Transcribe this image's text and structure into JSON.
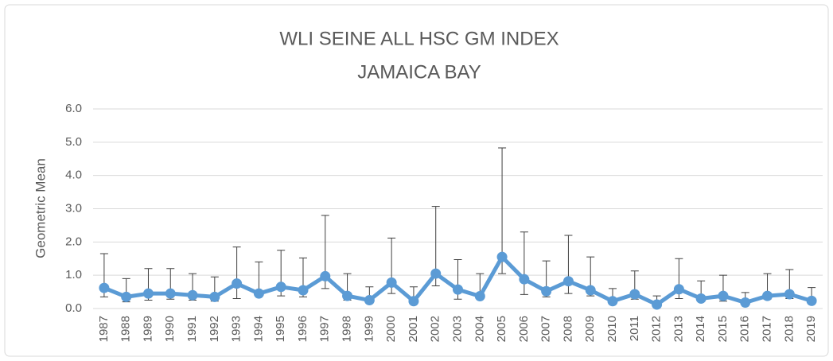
{
  "chart_data": {
    "type": "line",
    "title": "WLI SEINE ALL HSC GM INDEX",
    "subtitle": "JAMAICA BAY",
    "y_label": "Geometric Mean",
    "categories": [
      "1987",
      "1988",
      "1989",
      "1990",
      "1991",
      "1992",
      "1993",
      "1994",
      "1995",
      "1996",
      "1997",
      "1998",
      "1999",
      "2000",
      "2001",
      "2002",
      "2003",
      "2004",
      "2005",
      "2006",
      "2007",
      "2008",
      "2009",
      "2010",
      "2011",
      "2012",
      "2013",
      "2014",
      "2015",
      "2016",
      "2017",
      "2018",
      "2019"
    ],
    "series": [
      {
        "name": "Geometric Mean",
        "color": "#5b9bd5",
        "values": [
          0.62,
          0.35,
          0.45,
          0.45,
          0.4,
          0.35,
          0.75,
          0.45,
          0.65,
          0.55,
          0.97,
          0.38,
          0.25,
          0.78,
          0.22,
          1.05,
          0.57,
          0.37,
          1.55,
          0.88,
          0.52,
          0.82,
          0.55,
          0.22,
          0.43,
          0.12,
          0.58,
          0.3,
          0.38,
          0.18,
          0.38,
          0.43,
          0.23
        ],
        "upper": [
          1.65,
          0.9,
          1.2,
          1.2,
          1.05,
          0.95,
          1.85,
          1.4,
          1.75,
          1.52,
          2.8,
          1.05,
          0.65,
          2.12,
          0.65,
          3.07,
          1.47,
          1.05,
          4.83,
          2.3,
          1.43,
          2.2,
          1.55,
          0.6,
          1.13,
          0.38,
          1.5,
          0.83,
          1.0,
          0.48,
          1.05,
          1.17,
          0.63
        ],
        "lower": [
          0.35,
          0.2,
          0.25,
          0.28,
          0.25,
          0.22,
          0.3,
          0.38,
          0.38,
          0.35,
          0.6,
          0.25,
          0.2,
          0.45,
          0.2,
          0.68,
          0.28,
          0.33,
          1.05,
          0.42,
          0.35,
          0.45,
          0.38,
          0.2,
          0.28,
          0.08,
          0.3,
          0.25,
          0.22,
          0.1,
          0.28,
          0.3,
          0.2
        ]
      }
    ],
    "ylim": [
      0,
      6
    ],
    "yticks": [
      {
        "value": 0,
        "label": "0.0"
      },
      {
        "value": 1,
        "label": "1.0"
      },
      {
        "value": 2,
        "label": "2.0"
      },
      {
        "value": 3,
        "label": "3.0"
      },
      {
        "value": 4,
        "label": "4.0"
      },
      {
        "value": 5,
        "label": "5.0"
      },
      {
        "value": 6,
        "label": "6.0"
      }
    ],
    "grid": true,
    "error_color": "#404040"
  }
}
